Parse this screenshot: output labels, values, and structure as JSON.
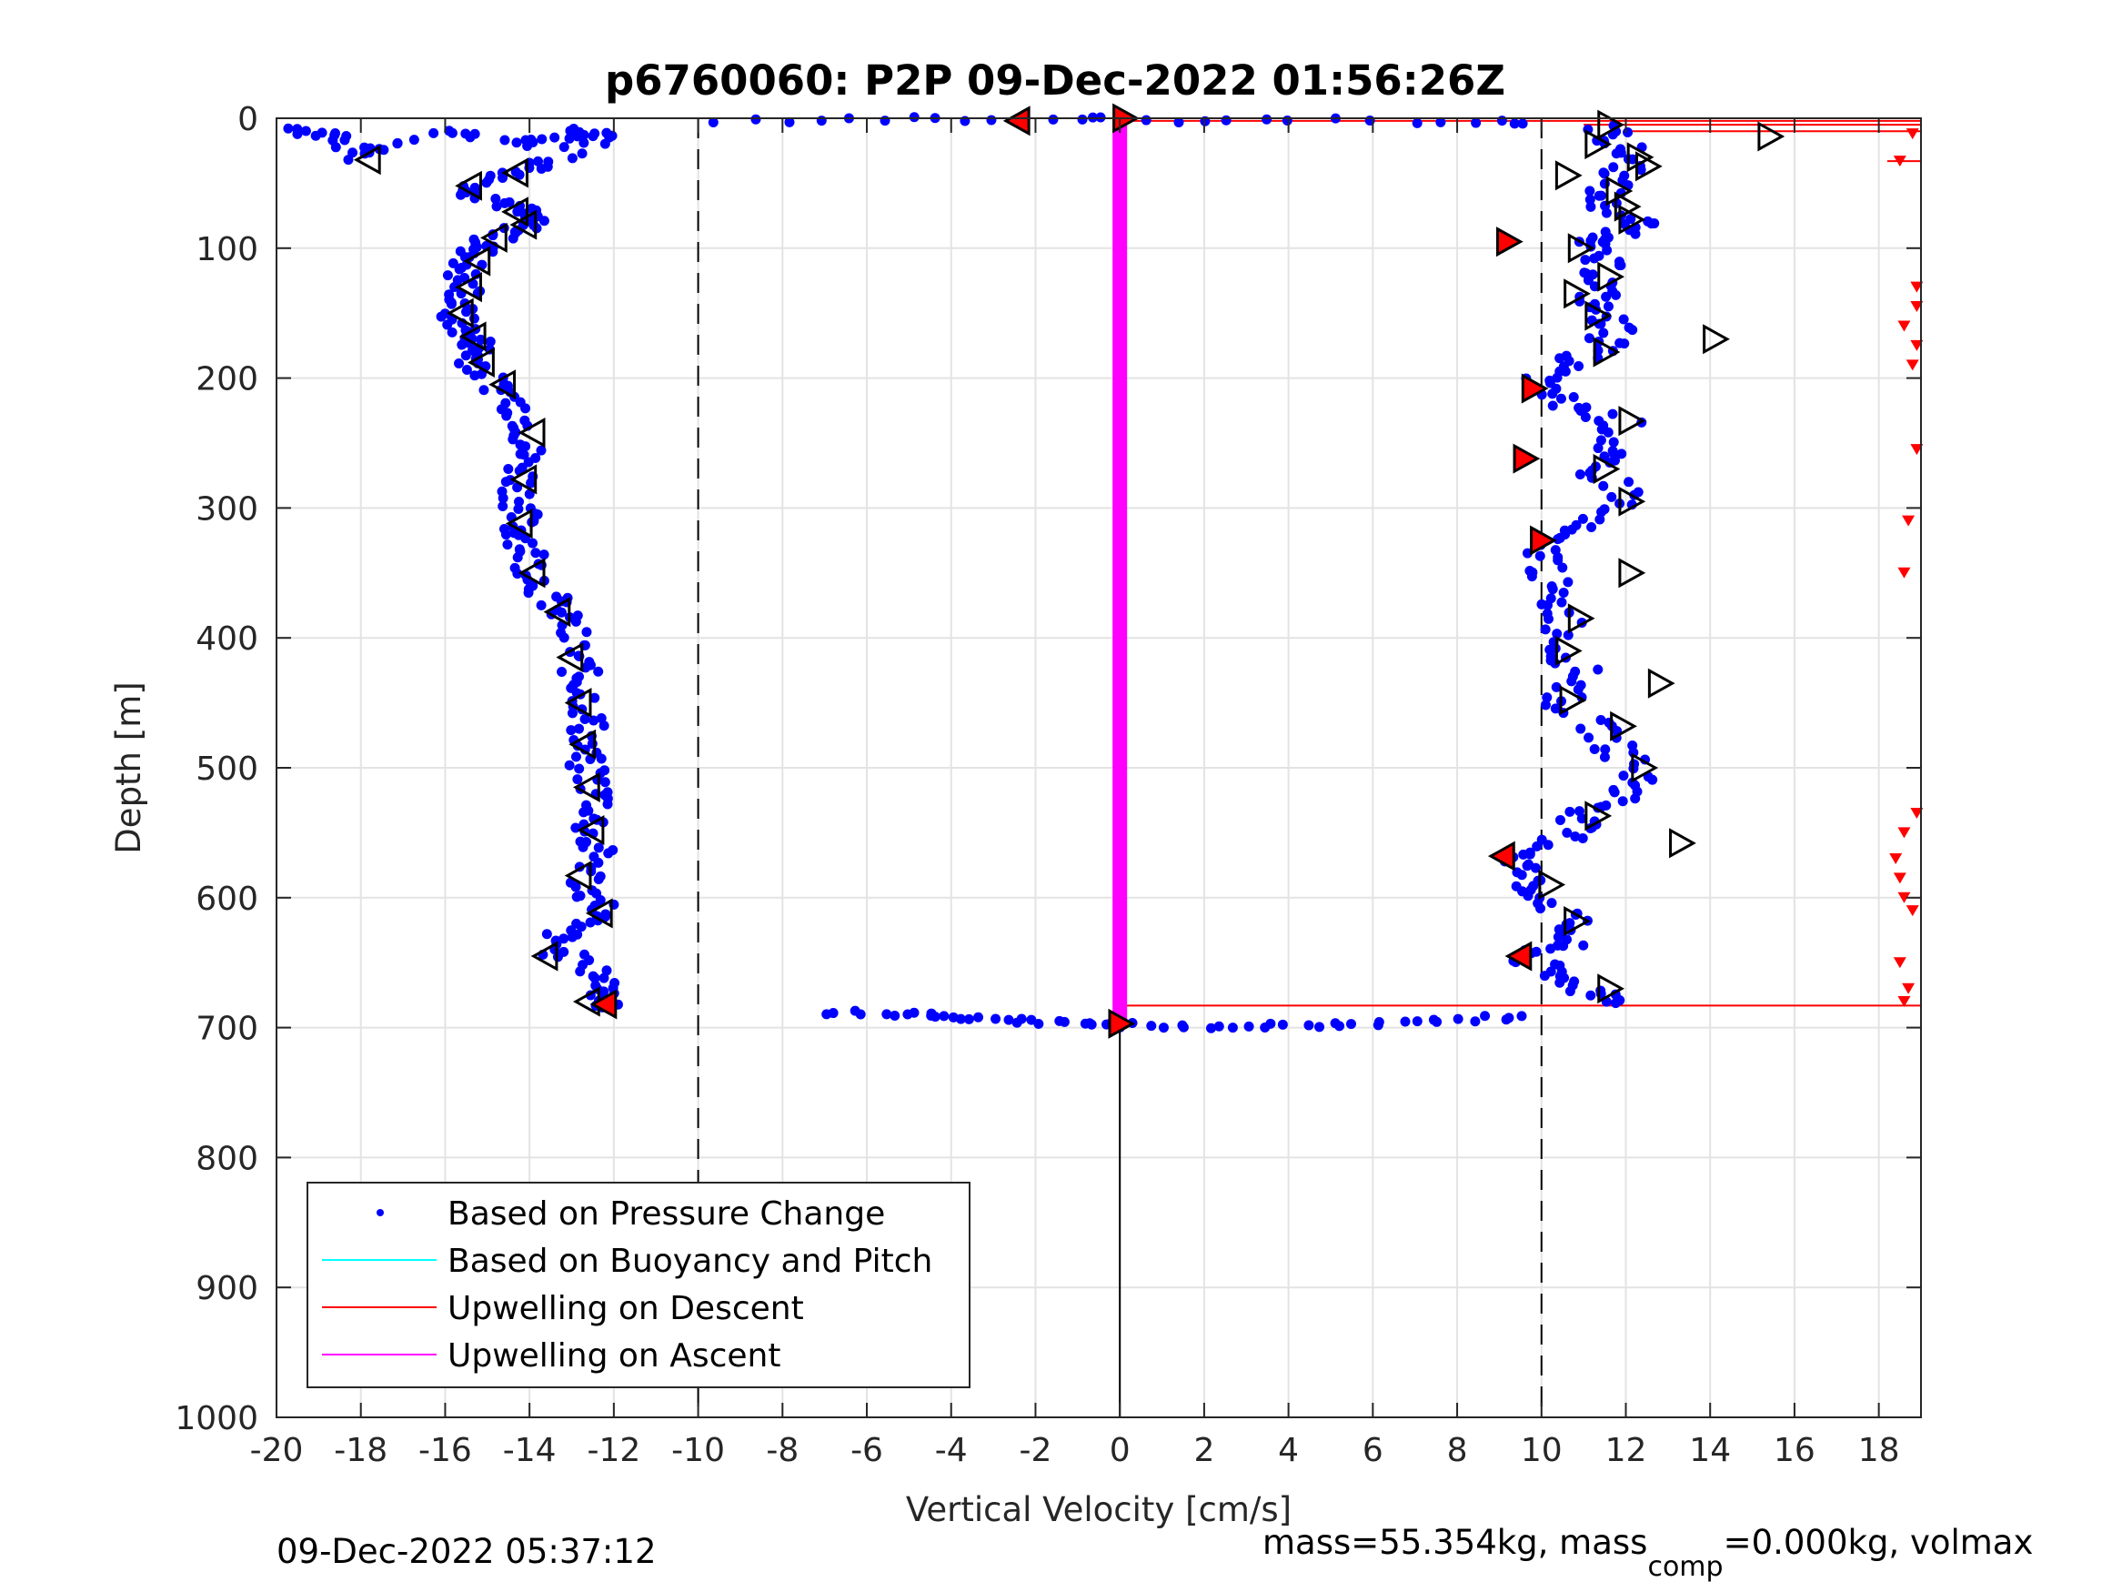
{
  "chart_data": {
    "type": "scatter",
    "title": "p6760060: P2P 09-Dec-2022 01:56:26Z",
    "xlabel": "Vertical Velocity [cm/s]",
    "ylabel": "Depth [m]",
    "xlim": [
      -20,
      19
    ],
    "ylim": [
      0,
      1000
    ],
    "y_reversed": true,
    "x_ticks": [
      "-20",
      "-18",
      "-16",
      "-14",
      "-12",
      "-10",
      "-8",
      "-6",
      "-4",
      "-2",
      "0",
      "2",
      "4",
      "6",
      "8",
      "10",
      "12",
      "14",
      "16",
      "18"
    ],
    "y_ticks": [
      "0",
      "100",
      "200",
      "300",
      "400",
      "500",
      "600",
      "700",
      "800",
      "900",
      "1000"
    ],
    "grid": true,
    "legend_position": "lower-left",
    "legend": [
      {
        "label": "Based on Pressure Change",
        "color": "#0000ff",
        "marker": "dot"
      },
      {
        "label": "Based on Buoyancy and Pitch",
        "color": "#00ffff",
        "marker": "line"
      },
      {
        "label": "Upwelling on Descent",
        "color": "#ff0000",
        "marker": "line"
      },
      {
        "label": "Upwelling on Ascent",
        "color": "#ff00ff",
        "marker": "line"
      }
    ],
    "reference_lines_x": [
      -10,
      10
    ],
    "zero_line_x": 0,
    "series": [
      {
        "name": "Based on Pressure Change",
        "color": "#0000ff",
        "descent_profile": [
          [
            -19.5,
            8
          ],
          [
            -18.5,
            15
          ],
          [
            -18,
            30
          ],
          [
            -16,
            10
          ],
          [
            -14,
            20
          ],
          [
            -13,
            10
          ],
          [
            -12,
            12
          ],
          [
            -13.5,
            35
          ],
          [
            -14.5,
            45
          ],
          [
            -15.5,
            55
          ],
          [
            -14.5,
            65
          ],
          [
            -14,
            75
          ],
          [
            -14.2,
            85
          ],
          [
            -15,
            95
          ],
          [
            -15.3,
            105
          ],
          [
            -15.6,
            120
          ],
          [
            -15.5,
            135
          ],
          [
            -15.8,
            150
          ],
          [
            -15.5,
            165
          ],
          [
            -15.2,
            175
          ],
          [
            -15.3,
            185
          ],
          [
            -15,
            200
          ],
          [
            -14.3,
            220
          ],
          [
            -14,
            240
          ],
          [
            -14.1,
            260
          ],
          [
            -14.2,
            280
          ],
          [
            -14.2,
            300
          ],
          [
            -14.3,
            315
          ],
          [
            -14,
            330
          ],
          [
            -13.9,
            350
          ],
          [
            -13.5,
            370
          ],
          [
            -13.2,
            385
          ],
          [
            -12.9,
            410
          ],
          [
            -12.8,
            430
          ],
          [
            -12.6,
            450
          ],
          [
            -12.6,
            470
          ],
          [
            -12.8,
            490
          ],
          [
            -12.5,
            510
          ],
          [
            -12.3,
            530
          ],
          [
            -12.6,
            550
          ],
          [
            -12.4,
            570
          ],
          [
            -12.7,
            590
          ],
          [
            -12.2,
            610
          ],
          [
            -13.2,
            625
          ],
          [
            -13.4,
            640
          ],
          [
            -12.3,
            660
          ],
          [
            -12.1,
            675
          ],
          [
            -12.3,
            685
          ]
        ],
        "ascent_profile": [
          [
            11.5,
            5
          ],
          [
            11.8,
            20
          ],
          [
            12.2,
            35
          ],
          [
            11.6,
            50
          ],
          [
            11.4,
            65
          ],
          [
            12.3,
            80
          ],
          [
            11.9,
            90
          ],
          [
            11,
            100
          ],
          [
            11.5,
            115
          ],
          [
            11.4,
            130
          ],
          [
            11.2,
            145
          ],
          [
            11.8,
            160
          ],
          [
            11.5,
            175
          ],
          [
            10.5,
            190
          ],
          [
            9.8,
            205
          ],
          [
            10.6,
            220
          ],
          [
            11.9,
            235
          ],
          [
            11.6,
            255
          ],
          [
            11,
            270
          ],
          [
            12.2,
            290
          ],
          [
            11,
            310
          ],
          [
            10,
            325
          ],
          [
            10.2,
            345
          ],
          [
            10.1,
            365
          ],
          [
            10.6,
            385
          ],
          [
            10.5,
            410
          ],
          [
            11,
            430
          ],
          [
            10.4,
            450
          ],
          [
            11.4,
            470
          ],
          [
            11.9,
            490
          ],
          [
            12.4,
            510
          ],
          [
            11.8,
            525
          ],
          [
            10.9,
            540
          ],
          [
            10.6,
            555
          ],
          [
            9.5,
            570
          ],
          [
            9.6,
            585
          ],
          [
            10.1,
            600
          ],
          [
            10.7,
            620
          ],
          [
            10.5,
            635
          ],
          [
            9.6,
            645
          ],
          [
            10.2,
            660
          ],
          [
            11.2,
            672
          ],
          [
            12.3,
            682
          ]
        ],
        "bottom_turn": [
          [
            -7,
            688
          ],
          [
            -5,
            690
          ],
          [
            -4,
            693
          ],
          [
            -2.5,
            695
          ],
          [
            -1,
            697
          ],
          [
            0,
            698
          ],
          [
            2,
            699
          ],
          [
            4,
            699
          ],
          [
            6,
            697
          ],
          [
            8,
            694
          ],
          [
            10,
            690
          ]
        ],
        "surface_turn": [
          [
            -9.5,
            3
          ],
          [
            -7,
            2
          ],
          [
            -5,
            1
          ],
          [
            -3,
            1
          ],
          [
            -1,
            1
          ],
          [
            0,
            1
          ],
          [
            2,
            2
          ],
          [
            4,
            2
          ],
          [
            7,
            2
          ],
          [
            9,
            2
          ],
          [
            10,
            3
          ]
        ]
      },
      {
        "name": "Upwelling on Ascent",
        "color": "#ff00ff",
        "x": [
          0,
          0
        ],
        "y": [
          0,
          695
        ]
      },
      {
        "name": "Upwelling on Descent",
        "color": "#ff0000",
        "points": [
          [
            18.8,
            12
          ],
          [
            18.5,
            33
          ],
          [
            18.9,
            130
          ],
          [
            18.9,
            145
          ],
          [
            18.6,
            160
          ],
          [
            18.9,
            175
          ],
          [
            18.8,
            190
          ],
          [
            18.9,
            255
          ],
          [
            18.7,
            310
          ],
          [
            18.6,
            350
          ],
          [
            18.9,
            535
          ],
          [
            18.6,
            550
          ],
          [
            18.4,
            570
          ],
          [
            18.5,
            585
          ],
          [
            18.6,
            600
          ],
          [
            18.8,
            610
          ],
          [
            18.5,
            650
          ],
          [
            18.7,
            670
          ],
          [
            18.6,
            680
          ]
        ]
      }
    ],
    "markers": {
      "left_open_triangles_descent": [
        [
          -17.8,
          32
        ],
        [
          -15.4,
          52
        ],
        [
          -14.3,
          42
        ],
        [
          -14.3,
          72
        ],
        [
          -14.1,
          82
        ],
        [
          -14.8,
          92
        ],
        [
          -15.2,
          110
        ],
        [
          -15.4,
          130
        ],
        [
          -15.6,
          150
        ],
        [
          -15.3,
          168
        ],
        [
          -15.1,
          188
        ],
        [
          -14.6,
          205
        ],
        [
          -13.9,
          242
        ],
        [
          -14.1,
          278
        ],
        [
          -14.2,
          312
        ],
        [
          -13.9,
          350
        ],
        [
          -13.3,
          380
        ],
        [
          -13,
          415
        ],
        [
          -12.8,
          450
        ],
        [
          -12.7,
          482
        ],
        [
          -12.6,
          515
        ],
        [
          -12.5,
          548
        ],
        [
          -12.8,
          583
        ],
        [
          -12.3,
          612
        ],
        [
          -13.6,
          645
        ],
        [
          -12.6,
          680
        ]
      ],
      "right_open_triangles_ascent": [
        [
          11.6,
          5
        ],
        [
          15.4,
          14
        ],
        [
          11.3,
          20
        ],
        [
          12.3,
          30
        ],
        [
          12.5,
          37
        ],
        [
          10.6,
          44
        ],
        [
          11.8,
          56
        ],
        [
          12.1,
          78
        ],
        [
          12,
          68
        ],
        [
          10.9,
          100
        ],
        [
          11.6,
          122
        ],
        [
          10.8,
          135
        ],
        [
          11.3,
          152
        ],
        [
          14.1,
          170
        ],
        [
          11.5,
          180
        ],
        [
          12.1,
          233
        ],
        [
          11.5,
          270
        ],
        [
          12.1,
          295
        ],
        [
          12.1,
          350
        ],
        [
          10.9,
          385
        ],
        [
          10.6,
          410
        ],
        [
          12.8,
          435
        ],
        [
          10.7,
          448
        ],
        [
          11.9,
          468
        ],
        [
          12.4,
          500
        ],
        [
          11.3,
          537
        ],
        [
          13.3,
          558
        ],
        [
          10.2,
          590
        ],
        [
          10.8,
          618
        ],
        [
          11.6,
          670
        ]
      ],
      "red_triangles_left": [
        [
          -2.4,
          2
        ],
        [
          -12.2,
          682
        ],
        [
          9.1,
          568
        ],
        [
          9.5,
          645
        ]
      ],
      "red_triangles_right": [
        [
          0.1,
          0
        ],
        [
          9.2,
          95
        ],
        [
          9.8,
          208
        ],
        [
          9.6,
          262
        ],
        [
          10,
          325
        ],
        [
          0,
          697
        ]
      ]
    },
    "red_connector_lines": [
      {
        "y": 2,
        "x": [
          0,
          19
        ]
      },
      {
        "y": 683,
        "x": [
          0,
          19
        ]
      },
      {
        "y": 5,
        "x": [
          11,
          19
        ]
      },
      {
        "y": 10,
        "x": [
          12,
          19
        ]
      },
      {
        "y": 33,
        "x": [
          18.2,
          19
        ]
      }
    ]
  },
  "footer": {
    "timestamp": "09-Dec-2022 05:37:12",
    "mass_text_prefix": "mass=55.354kg, mass",
    "mass_subscript": "comp",
    "mass_text_suffix": "=0.000kg, volmax"
  }
}
